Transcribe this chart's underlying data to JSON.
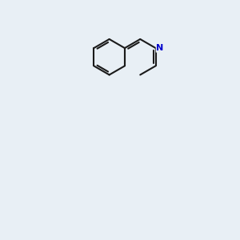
{
  "background_color": "#e8eff5",
  "bond_color": "#1a1a1a",
  "oxygen_color": "#cc0000",
  "nitrogen_color": "#0000cc",
  "line_width": 1.5,
  "fig_width": 3.0,
  "fig_height": 3.0,
  "dpi": 100
}
